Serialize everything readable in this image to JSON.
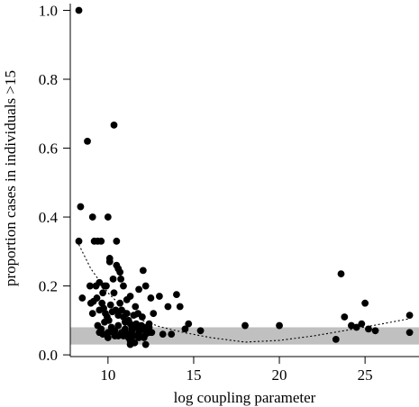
{
  "chart_data": {
    "type": "scatter",
    "title": "",
    "xlabel": "log coupling parameter",
    "ylabel": "proportion cases in individuals >15",
    "xlim": [
      7.8,
      28.2
    ],
    "ylim": [
      -0.005,
      1.03
    ],
    "x_ticks": [
      10,
      15,
      20,
      25
    ],
    "y_ticks": [
      0.0,
      0.2,
      0.4,
      0.6,
      0.8,
      1.0
    ],
    "x_tick_labels": [
      "10",
      "15",
      "20",
      "25"
    ],
    "y_tick_labels": [
      "0.0",
      "0.2",
      "0.4",
      "0.6",
      "0.8",
      "1.0"
    ],
    "grid": false,
    "legend": "none",
    "band": {
      "y_low": 0.03,
      "y_high": 0.08,
      "color": "#c0c0c0"
    },
    "trend_line": {
      "style": "dotted",
      "x": [
        8.3,
        9.0,
        10.0,
        11.0,
        12.0,
        13.0,
        14.5,
        16.0,
        18.0,
        20.0,
        22.0,
        24.0,
        26.0,
        27.6
      ],
      "y": [
        0.32,
        0.25,
        0.18,
        0.13,
        0.1,
        0.082,
        0.064,
        0.05,
        0.037,
        0.042,
        0.055,
        0.072,
        0.09,
        0.105
      ]
    },
    "series": [
      {
        "x": [
          8.3,
          8.4,
          8.8,
          9.1,
          9.2,
          9.4,
          9.6,
          9.8,
          10.0,
          10.1,
          10.35,
          10.5,
          10.6,
          10.75,
          8.3,
          8.5,
          8.95,
          9.15,
          9.3,
          9.5,
          9.7,
          9.9,
          10.1,
          10.3,
          10.5,
          10.7,
          10.9,
          11.1,
          11.3,
          11.6,
          11.8,
          12.05,
          12.2,
          12.5,
          9.0,
          9.1,
          9.35,
          9.5,
          9.65,
          9.75,
          9.85,
          9.95,
          10.05,
          10.15,
          10.25,
          10.35,
          10.45,
          10.6,
          10.7,
          10.8,
          10.9,
          11.0,
          11.1,
          11.2,
          11.3,
          11.4,
          11.5,
          11.65,
          11.75,
          11.85,
          11.95,
          12.0,
          12.1,
          12.3,
          12.4,
          12.55,
          12.65,
          9.4,
          9.6,
          9.8,
          10.0,
          10.2,
          10.4,
          10.6,
          10.8,
          11.0,
          11.2,
          11.4,
          11.6,
          11.8,
          12.0,
          12.2,
          12.4,
          9.7,
          10.0,
          10.3,
          10.6,
          10.9,
          11.2,
          11.5,
          11.8,
          12.1,
          12.4,
          9.5,
          10.4,
          11.3,
          12.2,
          10.9,
          11.3,
          11.55,
          11.8,
          13.0,
          13.2,
          13.5,
          13.7,
          14.0,
          14.2,
          14.5,
          14.7,
          15.4,
          18.0,
          20.0,
          23.3,
          23.6,
          23.8,
          24.2,
          24.5,
          24.8,
          25.0,
          25.2,
          25.6,
          27.6,
          27.6
        ],
        "y": [
          1.0,
          0.43,
          0.62,
          0.4,
          0.33,
          0.33,
          0.33,
          0.2,
          0.4,
          0.28,
          0.667,
          0.33,
          0.25,
          0.22,
          0.33,
          0.165,
          0.2,
          0.155,
          0.2,
          0.21,
          0.18,
          0.2,
          0.27,
          0.22,
          0.26,
          0.24,
          0.2,
          0.16,
          0.17,
          0.14,
          0.19,
          0.245,
          0.2,
          0.165,
          0.15,
          0.12,
          0.165,
          0.13,
          0.15,
          0.135,
          0.12,
          0.11,
          0.1,
          0.145,
          0.125,
          0.18,
          0.13,
          0.115,
          0.15,
          0.13,
          0.11,
          0.095,
          0.12,
          0.1,
          0.09,
          0.08,
          0.115,
          0.09,
          0.12,
          0.075,
          0.085,
          0.11,
          0.08,
          0.07,
          0.09,
          0.065,
          0.12,
          0.085,
          0.075,
          0.095,
          0.065,
          0.08,
          0.07,
          0.085,
          0.065,
          0.075,
          0.06,
          0.07,
          0.08,
          0.065,
          0.075,
          0.06,
          0.08,
          0.06,
          0.05,
          0.065,
          0.055,
          0.06,
          0.05,
          0.055,
          0.06,
          0.05,
          0.065,
          0.065,
          0.055,
          0.04,
          0.03,
          0.055,
          0.03,
          0.035,
          0.05,
          0.17,
          0.06,
          0.14,
          0.06,
          0.175,
          0.14,
          0.075,
          0.09,
          0.07,
          0.085,
          0.085,
          0.045,
          0.235,
          0.11,
          0.085,
          0.08,
          0.09,
          0.15,
          0.075,
          0.07,
          0.115,
          0.065
        ]
      }
    ]
  }
}
